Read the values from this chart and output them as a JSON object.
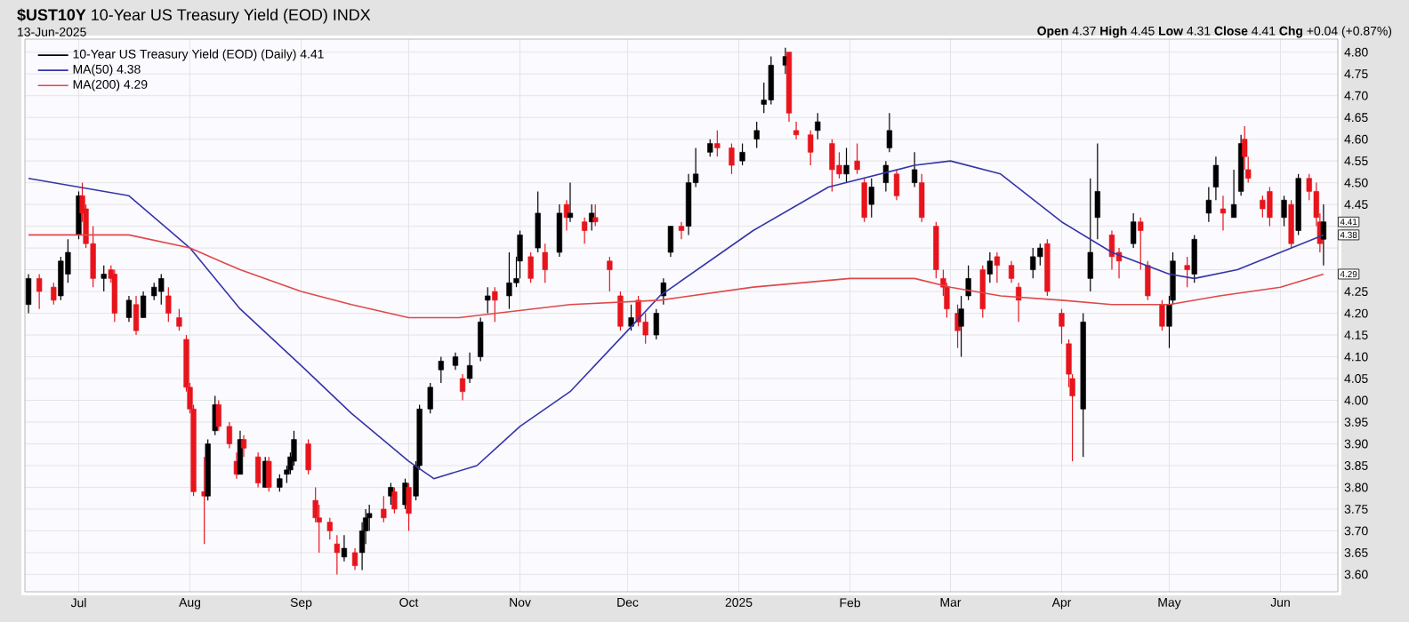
{
  "chart_data": {
    "type": "candlestick",
    "title": "**$UST10Y** 10-Year US Treasury Yield (EOD) INDX",
    "subtitle": "13-Jun-2025",
    "annotations": [
      "**Open** 4.37 **High** 4.45 **Low** 4.31 **Close** 4.41 **Chg** +0.04 (+0.87%)",
      {
        "text": "4.41",
        "x": "2025-06-13",
        "y": 4.41
      },
      {
        "text": "4.38",
        "x": "2025-06-13",
        "y": 4.38
      },
      {
        "text": "4.29",
        "x": "2025-06-13",
        "y": 4.29
      }
    ],
    "xlim": [
      "2024-06-16",
      "2025-06-17"
    ],
    "xticks": [
      {
        "value": "2024-07-01",
        "label": "Jul"
      },
      {
        "value": "2024-08-01",
        "label": "Aug"
      },
      {
        "value": "2024-09-01",
        "label": "Sep"
      },
      {
        "value": "2024-10-01",
        "label": "Oct"
      },
      {
        "value": "2024-11-01",
        "label": "Nov"
      },
      {
        "value": "2024-12-01",
        "label": "Dec"
      },
      {
        "value": "2025-01-01",
        "label": "2025"
      },
      {
        "value": "2025-02-01",
        "label": "Feb"
      },
      {
        "value": "2025-03-01",
        "label": "Mar"
      },
      {
        "value": "2025-04-01",
        "label": "Apr"
      },
      {
        "value": "2025-05-01",
        "label": "May"
      },
      {
        "value": "2025-06-01",
        "label": "Jun"
      }
    ],
    "ylim": [
      3.56,
      4.83
    ],
    "yticks": [
      {
        "value": 3.6,
        "label": "3.60"
      },
      {
        "value": 3.65,
        "label": "3.65"
      },
      {
        "value": 3.7,
        "label": "3.70"
      },
      {
        "value": 3.75,
        "label": "3.75"
      },
      {
        "value": 3.8,
        "label": "3.80"
      },
      {
        "value": 3.85,
        "label": "3.85"
      },
      {
        "value": 3.9,
        "label": "3.90"
      },
      {
        "value": 3.95,
        "label": "3.95"
      },
      {
        "value": 4.0,
        "label": "4.00"
      },
      {
        "value": 4.05,
        "label": "4.05"
      },
      {
        "value": 4.1,
        "label": "4.10"
      },
      {
        "value": 4.15,
        "label": "4.15"
      },
      {
        "value": 4.2,
        "label": "4.20"
      },
      {
        "value": 4.25,
        "label": "4.25"
      },
      {
        "value": 4.3,
        "label": null
      },
      {
        "value": 4.35,
        "label": null
      },
      {
        "value": 4.4,
        "label": null
      },
      {
        "value": 4.45,
        "label": "4.45"
      },
      {
        "value": 4.5,
        "label": "4.50"
      },
      {
        "value": 4.55,
        "label": "4.55"
      },
      {
        "value": 4.6,
        "label": "4.60"
      },
      {
        "value": 4.65,
        "label": "4.65"
      },
      {
        "value": 4.7,
        "label": "4.70"
      },
      {
        "value": 4.75,
        "label": "4.75"
      },
      {
        "value": 4.8,
        "label": "4.80"
      }
    ],
    "grid": true,
    "legend": "top left",
    "series": [
      {
        "name": "10-Year US Treasury Yield (EOD) (Daily) 4.41",
        "x": [
          "2024-06-17",
          "2024-06-20",
          "2024-06-24",
          "2024-06-26",
          "2024-06-28",
          "2024-07-01",
          "2024-07-02",
          "2024-07-03",
          "2024-07-05",
          "2024-07-08",
          "2024-07-10",
          "2024-07-11",
          "2024-07-15",
          "2024-07-17",
          "2024-07-19",
          "2024-07-22",
          "2024-07-24",
          "2024-07-26",
          "2024-07-29",
          "2024-07-31",
          "2024-08-01",
          "2024-08-02",
          "2024-08-05",
          "2024-08-06",
          "2024-08-08",
          "2024-08-09",
          "2024-08-12",
          "2024-08-14",
          "2024-08-15",
          "2024-08-16",
          "2024-08-20",
          "2024-08-22",
          "2024-08-23",
          "2024-08-26",
          "2024-08-28",
          "2024-08-29",
          "2024-08-30",
          "2024-09-03",
          "2024-09-05",
          "2024-09-06",
          "2024-09-09",
          "2024-09-11",
          "2024-09-13",
          "2024-09-16",
          "2024-09-18",
          "2024-09-19",
          "2024-09-20",
          "2024-09-24",
          "2024-09-26",
          "2024-09-27",
          "2024-09-30",
          "2024-10-01",
          "2024-10-03",
          "2024-10-04",
          "2024-10-07",
          "2024-10-10",
          "2024-10-14",
          "2024-10-16",
          "2024-10-18",
          "2024-10-21",
          "2024-10-23",
          "2024-10-25",
          "2024-10-29",
          "2024-10-31",
          "2024-11-01",
          "2024-11-04",
          "2024-11-06",
          "2024-11-08",
          "2024-11-12",
          "2024-11-14",
          "2024-11-15",
          "2024-11-19",
          "2024-11-21",
          "2024-11-22",
          "2024-11-26",
          "2024-11-29",
          "2024-12-02",
          "2024-12-04",
          "2024-12-06",
          "2024-12-09",
          "2024-12-11",
          "2024-12-13",
          "2024-12-16",
          "2024-12-18",
          "2024-12-20",
          "2024-12-24",
          "2024-12-26",
          "2024-12-30",
          "2025-01-02",
          "2025-01-06",
          "2025-01-08",
          "2025-01-10",
          "2025-01-14",
          "2025-01-15",
          "2025-01-17",
          "2025-01-21",
          "2025-01-23",
          "2025-01-27",
          "2025-01-29",
          "2025-01-31",
          "2025-02-03",
          "2025-02-05",
          "2025-02-07",
          "2025-02-11",
          "2025-02-12",
          "2025-02-14",
          "2025-02-19",
          "2025-02-21",
          "2025-02-25",
          "2025-02-27",
          "2025-02-28",
          "2025-03-03",
          "2025-03-04",
          "2025-03-06",
          "2025-03-10",
          "2025-03-12",
          "2025-03-14",
          "2025-03-18",
          "2025-03-20",
          "2025-03-24",
          "2025-03-26",
          "2025-03-28",
          "2025-04-01",
          "2025-04-03",
          "2025-04-04",
          "2025-04-07",
          "2025-04-09",
          "2025-04-11",
          "2025-04-15",
          "2025-04-17",
          "2025-04-21",
          "2025-04-23",
          "2025-04-25",
          "2025-04-29",
          "2025-05-01",
          "2025-05-02",
          "2025-05-06",
          "2025-05-08",
          "2025-05-12",
          "2025-05-14",
          "2025-05-16",
          "2025-05-19",
          "2025-05-21",
          "2025-05-22",
          "2025-05-23",
          "2025-05-27",
          "2025-05-29",
          "2025-06-02",
          "2025-06-04",
          "2025-06-06",
          "2025-06-09",
          "2025-06-11",
          "2025-06-12",
          "2025-06-13"
        ],
        "ohlc": [
          [
            4.22,
            4.29,
            4.2,
            4.28
          ],
          [
            4.28,
            4.29,
            4.21,
            4.25
          ],
          [
            4.26,
            4.27,
            4.22,
            4.23
          ],
          [
            4.24,
            4.33,
            4.23,
            4.32
          ],
          [
            4.29,
            4.37,
            4.27,
            4.34
          ],
          [
            4.38,
            4.48,
            4.37,
            4.47
          ],
          [
            4.47,
            4.5,
            4.41,
            4.43
          ],
          [
            4.44,
            4.45,
            4.35,
            4.36
          ],
          [
            4.36,
            4.4,
            4.26,
            4.28
          ],
          [
            4.28,
            4.31,
            4.25,
            4.29
          ],
          [
            4.3,
            4.31,
            4.27,
            4.28
          ],
          [
            4.29,
            4.3,
            4.18,
            4.2
          ],
          [
            4.19,
            4.24,
            4.18,
            4.23
          ],
          [
            4.22,
            4.24,
            4.15,
            4.16
          ],
          [
            4.19,
            4.25,
            4.19,
            4.24
          ],
          [
            4.24,
            4.27,
            4.23,
            4.26
          ],
          [
            4.25,
            4.29,
            4.22,
            4.28
          ],
          [
            4.24,
            4.26,
            4.18,
            4.2
          ],
          [
            4.19,
            4.21,
            4.16,
            4.17
          ],
          [
            4.14,
            4.15,
            4.02,
            4.03
          ],
          [
            4.03,
            4.04,
            3.97,
            3.98
          ],
          [
            3.98,
            3.99,
            3.78,
            3.79
          ],
          [
            3.79,
            3.87,
            3.67,
            3.78
          ],
          [
            3.78,
            3.91,
            3.77,
            3.9
          ],
          [
            3.93,
            4.01,
            3.92,
            3.99
          ],
          [
            3.99,
            4.0,
            3.93,
            3.94
          ],
          [
            3.94,
            3.95,
            3.89,
            3.9
          ],
          [
            3.86,
            3.88,
            3.82,
            3.83
          ],
          [
            3.83,
            3.93,
            3.83,
            3.91
          ],
          [
            3.91,
            3.92,
            3.87,
            3.89
          ],
          [
            3.87,
            3.88,
            3.8,
            3.81
          ],
          [
            3.8,
            3.87,
            3.8,
            3.86
          ],
          [
            3.86,
            3.87,
            3.79,
            3.8
          ],
          [
            3.8,
            3.83,
            3.79,
            3.82
          ],
          [
            3.83,
            3.85,
            3.81,
            3.84
          ],
          [
            3.84,
            3.88,
            3.83,
            3.87
          ],
          [
            3.86,
            3.93,
            3.85,
            3.91
          ],
          [
            3.9,
            3.91,
            3.83,
            3.84
          ],
          [
            3.77,
            3.8,
            3.72,
            3.73
          ],
          [
            3.73,
            3.76,
            3.65,
            3.72
          ],
          [
            3.72,
            3.73,
            3.68,
            3.7
          ],
          [
            3.67,
            3.69,
            3.6,
            3.65
          ],
          [
            3.64,
            3.69,
            3.63,
            3.66
          ],
          [
            3.65,
            3.66,
            3.61,
            3.62
          ],
          [
            3.65,
            3.72,
            3.61,
            3.7
          ],
          [
            3.7,
            3.75,
            3.67,
            3.73
          ],
          [
            3.73,
            3.76,
            3.7,
            3.74
          ],
          [
            3.75,
            3.78,
            3.72,
            3.73
          ],
          [
            3.78,
            3.81,
            3.76,
            3.8
          ],
          [
            3.79,
            3.8,
            3.74,
            3.75
          ],
          [
            3.76,
            3.82,
            3.75,
            3.81
          ],
          [
            3.8,
            3.81,
            3.7,
            3.74
          ],
          [
            3.78,
            3.86,
            3.77,
            3.85
          ],
          [
            3.85,
            3.99,
            3.84,
            3.98
          ],
          [
            3.98,
            4.04,
            3.97,
            4.03
          ],
          [
            4.07,
            4.1,
            4.04,
            4.09
          ],
          [
            4.08,
            4.11,
            4.07,
            4.1
          ],
          [
            4.05,
            4.06,
            4.0,
            4.02
          ],
          [
            4.05,
            4.11,
            4.04,
            4.08
          ],
          [
            4.1,
            4.19,
            4.09,
            4.18
          ],
          [
            4.23,
            4.26,
            4.2,
            4.24
          ],
          [
            4.25,
            4.26,
            4.18,
            4.23
          ],
          [
            4.24,
            4.34,
            4.21,
            4.27
          ],
          [
            4.27,
            4.33,
            4.26,
            4.28
          ],
          [
            4.32,
            4.39,
            4.28,
            4.38
          ],
          [
            4.33,
            4.34,
            4.27,
            4.28
          ],
          [
            4.35,
            4.48,
            4.34,
            4.43
          ],
          [
            4.34,
            4.36,
            4.27,
            4.3
          ],
          [
            4.34,
            4.45,
            4.33,
            4.43
          ],
          [
            4.45,
            4.46,
            4.39,
            4.42
          ],
          [
            4.42,
            4.5,
            4.41,
            4.43
          ],
          [
            4.41,
            4.42,
            4.36,
            4.39
          ],
          [
            4.41,
            4.45,
            4.39,
            4.43
          ],
          [
            4.42,
            4.45,
            4.4,
            4.41
          ],
          [
            4.32,
            4.33,
            4.25,
            4.3
          ],
          [
            4.24,
            4.25,
            4.16,
            4.17
          ],
          [
            4.17,
            4.22,
            4.16,
            4.19
          ],
          [
            4.23,
            4.24,
            4.17,
            4.18
          ],
          [
            4.18,
            4.2,
            4.13,
            4.15
          ],
          [
            4.15,
            4.21,
            4.14,
            4.2
          ],
          [
            4.24,
            4.28,
            4.22,
            4.27
          ],
          [
            4.34,
            4.4,
            4.33,
            4.4
          ],
          [
            4.4,
            4.41,
            4.37,
            4.39
          ],
          [
            4.4,
            4.52,
            4.38,
            4.5
          ],
          [
            4.5,
            4.58,
            4.49,
            4.52
          ],
          [
            4.57,
            4.6,
            4.56,
            4.59
          ],
          [
            4.59,
            4.62,
            4.56,
            4.58
          ],
          [
            4.58,
            4.59,
            4.52,
            4.54
          ],
          [
            4.55,
            4.59,
            4.54,
            4.57
          ],
          [
            4.6,
            4.64,
            4.58,
            4.62
          ],
          [
            4.68,
            4.73,
            4.66,
            4.69
          ],
          [
            4.69,
            4.79,
            4.68,
            4.77
          ],
          [
            4.77,
            4.81,
            4.75,
            4.79
          ],
          [
            4.8,
            4.8,
            4.64,
            4.66
          ],
          [
            4.62,
            4.64,
            4.6,
            4.61
          ],
          [
            4.61,
            4.62,
            4.54,
            4.57
          ],
          [
            4.62,
            4.66,
            4.6,
            4.64
          ],
          [
            4.59,
            4.6,
            4.48,
            4.53
          ],
          [
            4.54,
            4.57,
            4.51,
            4.52
          ],
          [
            4.52,
            4.58,
            4.5,
            4.54
          ],
          [
            4.55,
            4.59,
            4.52,
            4.53
          ],
          [
            4.5,
            4.51,
            4.41,
            4.42
          ],
          [
            4.45,
            4.51,
            4.42,
            4.49
          ],
          [
            4.5,
            4.55,
            4.48,
            4.54
          ],
          [
            4.58,
            4.66,
            4.57,
            4.62
          ],
          [
            4.52,
            4.53,
            4.46,
            4.47
          ],
          [
            4.5,
            4.57,
            4.49,
            4.53
          ],
          [
            4.5,
            4.52,
            4.41,
            4.42
          ],
          [
            4.4,
            4.41,
            4.28,
            4.3
          ],
          [
            4.28,
            4.3,
            4.24,
            4.26
          ],
          [
            4.26,
            4.27,
            4.19,
            4.21
          ],
          [
            4.2,
            4.22,
            4.12,
            4.16
          ],
          [
            4.17,
            4.24,
            4.1,
            4.21
          ],
          [
            4.24,
            4.31,
            4.23,
            4.28
          ],
          [
            4.3,
            4.31,
            4.19,
            4.21
          ],
          [
            4.29,
            4.34,
            4.27,
            4.32
          ],
          [
            4.33,
            4.34,
            4.27,
            4.31
          ],
          [
            4.31,
            4.32,
            4.27,
            4.28
          ],
          [
            4.26,
            4.27,
            4.18,
            4.23
          ],
          [
            4.3,
            4.35,
            4.28,
            4.33
          ],
          [
            4.33,
            4.36,
            4.31,
            4.35
          ],
          [
            4.36,
            4.37,
            4.24,
            4.25
          ],
          [
            4.2,
            4.21,
            4.13,
            4.17
          ],
          [
            4.13,
            4.14,
            4.03,
            4.06
          ],
          [
            4.05,
            4.06,
            3.86,
            4.01
          ],
          [
            3.98,
            4.2,
            3.87,
            4.18
          ],
          [
            4.28,
            4.51,
            4.25,
            4.34
          ],
          [
            4.42,
            4.59,
            4.37,
            4.48
          ],
          [
            4.38,
            4.39,
            4.3,
            4.33
          ],
          [
            4.34,
            4.35,
            4.28,
            4.32
          ],
          [
            4.36,
            4.43,
            4.35,
            4.41
          ],
          [
            4.41,
            4.42,
            4.3,
            4.39
          ],
          [
            4.31,
            4.32,
            4.23,
            4.24
          ],
          [
            4.22,
            4.23,
            4.16,
            4.17
          ],
          [
            4.17,
            4.24,
            4.12,
            4.22
          ],
          [
            4.23,
            4.34,
            4.22,
            4.32
          ],
          [
            4.31,
            4.33,
            4.26,
            4.3
          ],
          [
            4.29,
            4.38,
            4.27,
            4.37
          ],
          [
            4.43,
            4.49,
            4.41,
            4.46
          ],
          [
            4.49,
            4.56,
            4.46,
            4.54
          ],
          [
            4.44,
            4.47,
            4.39,
            4.43
          ],
          [
            4.42,
            4.53,
            4.42,
            4.45
          ],
          [
            4.48,
            4.61,
            4.47,
            4.59
          ],
          [
            4.6,
            4.63,
            4.53,
            4.56
          ],
          [
            4.53,
            4.56,
            4.5,
            4.51
          ],
          [
            4.46,
            4.47,
            4.42,
            4.44
          ],
          [
            4.48,
            4.49,
            4.4,
            4.42
          ],
          [
            4.42,
            4.47,
            4.4,
            4.46
          ],
          [
            4.45,
            4.46,
            4.35,
            4.36
          ],
          [
            4.39,
            4.52,
            4.38,
            4.51
          ],
          [
            4.51,
            4.52,
            4.46,
            4.48
          ],
          [
            4.48,
            4.5,
            4.4,
            4.42
          ],
          [
            4.41,
            4.43,
            4.34,
            4.36
          ],
          [
            4.37,
            4.45,
            4.31,
            4.41
          ]
        ],
        "colors": [
          "#000000",
          "#e8141c",
          "#e8141c",
          "#000000",
          "#000000",
          "#000000",
          "#e8141c",
          "#e8141c",
          "#e8141c",
          "#000000",
          "#e8141c",
          "#e8141c",
          "#000000",
          "#e8141c",
          "#000000",
          "#000000",
          "#000000",
          "#e8141c",
          "#e8141c",
          "#e8141c",
          "#e8141c",
          "#e8141c",
          "#e8141c",
          "#000000",
          "#000000",
          "#e8141c",
          "#e8141c",
          "#e8141c",
          "#000000",
          "#e8141c",
          "#e8141c",
          "#000000",
          "#e8141c",
          "#000000",
          "#000000",
          "#000000",
          "#000000",
          "#e8141c",
          "#e8141c",
          "#e8141c",
          "#e8141c",
          "#e8141c",
          "#000000",
          "#e8141c",
          "#000000",
          "#000000",
          "#000000",
          "#e8141c",
          "#000000",
          "#e8141c",
          "#000000",
          "#e8141c",
          "#000000",
          "#000000",
          "#000000",
          "#000000",
          "#000000",
          "#e8141c",
          "#000000",
          "#000000",
          "#000000",
          "#e8141c",
          "#000000",
          "#000000",
          "#000000",
          "#e8141c",
          "#000000",
          "#e8141c",
          "#000000",
          "#e8141c",
          "#000000",
          "#e8141c",
          "#000000",
          "#e8141c",
          "#e8141c",
          "#e8141c",
          "#000000",
          "#e8141c",
          "#e8141c",
          "#000000",
          "#000000",
          "#000000",
          "#e8141c",
          "#000000",
          "#000000",
          "#000000",
          "#e8141c",
          "#e8141c",
          "#000000",
          "#000000",
          "#000000",
          "#000000",
          "#000000",
          "#e8141c",
          "#e8141c",
          "#e8141c",
          "#000000",
          "#e8141c",
          "#e8141c",
          "#000000",
          "#e8141c",
          "#e8141c",
          "#000000",
          "#000000",
          "#000000",
          "#e8141c",
          "#000000",
          "#e8141c",
          "#e8141c",
          "#e8141c",
          "#e8141c",
          "#e8141c",
          "#000000",
          "#000000",
          "#e8141c",
          "#000000",
          "#e8141c",
          "#e8141c",
          "#e8141c",
          "#000000",
          "#000000",
          "#e8141c",
          "#e8141c",
          "#e8141c",
          "#e8141c",
          "#000000",
          "#000000",
          "#000000",
          "#e8141c",
          "#e8141c",
          "#000000",
          "#e8141c",
          "#e8141c",
          "#e8141c",
          "#000000",
          "#000000",
          "#e8141c",
          "#000000",
          "#000000",
          "#000000",
          "#e8141c",
          "#000000",
          "#000000",
          "#e8141c",
          "#e8141c",
          "#e8141c",
          "#e8141c",
          "#000000",
          "#e8141c",
          "#000000",
          "#e8141c",
          "#e8141c",
          "#e8141c",
          "#000000"
        ]
      },
      {
        "name": "MA(50) 4.38",
        "type": "line",
        "color": "#3535a8",
        "x": [
          "2024-06-17",
          "2024-07-01",
          "2024-07-15",
          "2024-08-01",
          "2024-08-15",
          "2024-09-01",
          "2024-09-15",
          "2024-10-01",
          "2024-10-08",
          "2024-10-20",
          "2024-11-01",
          "2024-11-15",
          "2024-12-01",
          "2024-12-10",
          "2025-01-05",
          "2025-01-26",
          "2025-02-19",
          "2025-03-01",
          "2025-03-15",
          "2025-04-01",
          "2025-04-15",
          "2025-05-01",
          "2025-05-08",
          "2025-05-20",
          "2025-06-01",
          "2025-06-13"
        ],
        "values": [
          4.51,
          4.49,
          4.47,
          4.35,
          4.21,
          4.08,
          3.97,
          3.86,
          3.82,
          3.85,
          3.94,
          4.02,
          4.16,
          4.24,
          4.39,
          4.49,
          4.54,
          4.55,
          4.52,
          4.41,
          4.34,
          4.29,
          4.28,
          4.3,
          4.34,
          4.38
        ]
      },
      {
        "name": "MA(200) 4.29",
        "type": "line",
        "color": "#e04848",
        "x": [
          "2024-06-17",
          "2024-07-15",
          "2024-08-01",
          "2024-08-15",
          "2024-09-01",
          "2024-09-15",
          "2024-10-01",
          "2024-10-15",
          "2024-11-15",
          "2024-12-10",
          "2025-01-05",
          "2025-02-01",
          "2025-02-19",
          "2025-03-01",
          "2025-03-15",
          "2025-04-01",
          "2025-04-15",
          "2025-05-01",
          "2025-05-15",
          "2025-06-01",
          "2025-06-13"
        ],
        "values": [
          4.38,
          4.38,
          4.35,
          4.3,
          4.25,
          4.22,
          4.19,
          4.19,
          4.22,
          4.23,
          4.26,
          4.28,
          4.28,
          4.26,
          4.24,
          4.23,
          4.22,
          4.22,
          4.24,
          4.26,
          4.29
        ]
      }
    ]
  }
}
